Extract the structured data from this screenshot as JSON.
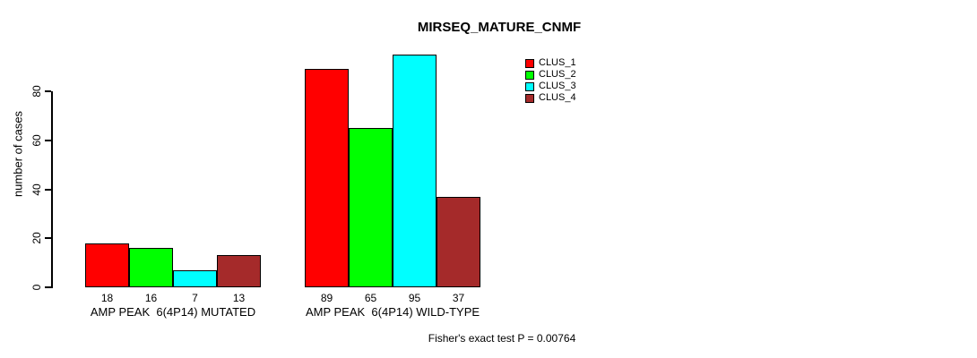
{
  "chart_data": {
    "type": "bar",
    "title": "MIRSEQ_MATURE_CNMF",
    "xlabel": "",
    "ylabel": "number of cases",
    "categories": [
      "AMP PEAK  6(4P14) MUTATED",
      "AMP PEAK  6(4P14) WILD-TYPE"
    ],
    "series": [
      {
        "name": "CLUS_1",
        "color": "#FF0000",
        "values": [
          18,
          89
        ]
      },
      {
        "name": "CLUS_2",
        "color": "#00FF00",
        "values": [
          16,
          65
        ]
      },
      {
        "name": "CLUS_3",
        "color": "#00FFFF",
        "values": [
          7,
          95
        ]
      },
      {
        "name": "CLUS_4",
        "color": "#A52A2A",
        "values": [
          13,
          37
        ]
      }
    ],
    "bar_value_labels": [
      [
        18,
        16,
        7,
        13
      ],
      [
        89,
        65,
        95,
        37
      ]
    ],
    "yticks": [
      0,
      20,
      40,
      60,
      80
    ],
    "ylim": [
      0,
      96
    ],
    "grid": false,
    "legend_position": "top-right",
    "annotation": "Fisher's exact test P = 0.00764"
  }
}
